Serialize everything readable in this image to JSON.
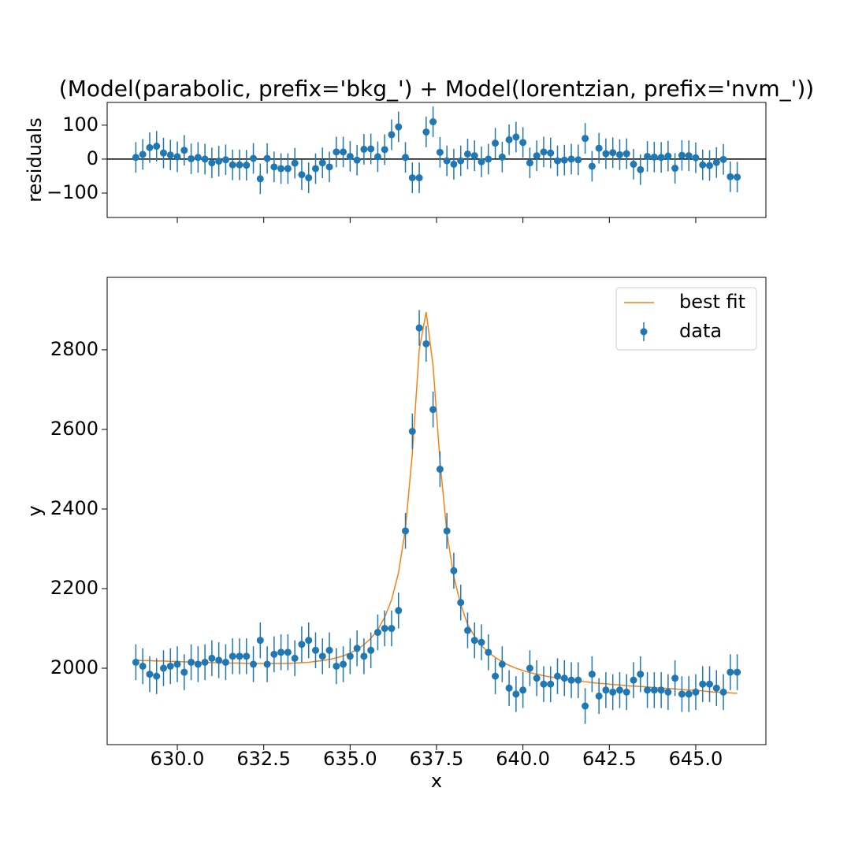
{
  "chart_data": [
    {
      "type": "errorbar",
      "title": "(Model(parabolic, prefix='bkg_') + Model(lorentzian, prefix='nvm_'))",
      "ylabel": "residuals",
      "x": [
        628.8,
        629.0,
        629.2,
        629.4,
        629.6,
        629.8,
        630.0,
        630.2,
        630.4,
        630.6,
        630.8,
        631.0,
        631.2,
        631.4,
        631.6,
        631.8,
        632.0,
        632.2,
        632.4,
        632.6,
        632.8,
        633.0,
        633.2,
        633.4,
        633.6,
        633.8,
        634.0,
        634.2,
        634.4,
        634.6,
        634.8,
        635.0,
        635.2,
        635.4,
        635.6,
        635.8,
        636.0,
        636.2,
        636.4,
        636.6,
        636.8,
        637.0,
        637.2,
        637.4,
        637.6,
        637.8,
        638.0,
        638.2,
        638.4,
        638.6,
        638.8,
        639.0,
        639.2,
        639.4,
        639.6,
        639.8,
        640.0,
        640.2,
        640.4,
        640.6,
        640.8,
        641.0,
        641.2,
        641.4,
        641.6,
        641.8,
        642.0,
        642.2,
        642.4,
        642.6,
        642.8,
        643.0,
        643.2,
        643.4,
        643.6,
        643.8,
        644.0,
        644.2,
        644.4,
        644.6,
        644.8,
        645.0,
        645.2,
        645.4,
        645.6,
        645.8,
        646.0,
        646.2
      ],
      "values": [
        5,
        14,
        34,
        38,
        18,
        12,
        7,
        26,
        1,
        5,
        0,
        -11,
        -6,
        -2,
        -17,
        -17,
        -18,
        2,
        -58,
        2,
        -23,
        -28,
        -28,
        -12,
        -46,
        -55,
        -28,
        -11,
        -23,
        21,
        21,
        8,
        -3,
        29,
        30,
        7,
        28,
        72,
        95,
        5,
        -55,
        -55,
        80,
        110,
        20,
        -5,
        -15,
        -5,
        15,
        10,
        -8,
        0,
        47,
        6,
        57,
        65,
        49,
        -11,
        10,
        21,
        18,
        -5,
        -3,
        0,
        -2,
        61,
        -21,
        32,
        16,
        19,
        13,
        16,
        -15,
        -31,
        8,
        6,
        5,
        9,
        -27,
        11,
        10,
        4,
        -17,
        -19,
        -10,
        -1,
        -52,
        -53
      ],
      "yerr": 45,
      "color": "#1f77b4",
      "hline": 0,
      "xticklabels": false,
      "xlim": [
        627.97,
        647.03
      ],
      "xticks": [
        {
          "value": 630,
          "label": "630.0"
        },
        {
          "value": 632.5,
          "label": "632.5"
        },
        {
          "value": 635,
          "label": "635.0"
        },
        {
          "value": 637.5,
          "label": "637.5"
        },
        {
          "value": 640,
          "label": "640.0"
        },
        {
          "value": 642.5,
          "label": "642.5"
        },
        {
          "value": 645,
          "label": "645.0"
        }
      ],
      "ylim": [
        -172,
        167
      ],
      "yticks": [
        {
          "value": -100,
          "label": "−100"
        },
        0,
        100
      ]
    },
    {
      "type": "errorbar",
      "xlabel": "x",
      "ylabel": "y",
      "legend": "upper right",
      "x": [
        628.8,
        629.0,
        629.2,
        629.4,
        629.6,
        629.8,
        630.0,
        630.2,
        630.4,
        630.6,
        630.8,
        631.0,
        631.2,
        631.4,
        631.6,
        631.8,
        632.0,
        632.2,
        632.4,
        632.6,
        632.8,
        633.0,
        633.2,
        633.4,
        633.6,
        633.8,
        634.0,
        634.2,
        634.4,
        634.6,
        634.8,
        635.0,
        635.2,
        635.4,
        635.6,
        635.8,
        636.0,
        636.2,
        636.4,
        636.6,
        636.8,
        637.0,
        637.2,
        637.4,
        637.6,
        637.8,
        638.0,
        638.2,
        638.4,
        638.6,
        638.8,
        639.0,
        639.2,
        639.4,
        639.6,
        639.8,
        640.0,
        640.2,
        640.4,
        640.6,
        640.8,
        641.0,
        641.2,
        641.4,
        641.6,
        641.8,
        642.0,
        642.2,
        642.4,
        642.6,
        642.8,
        643.0,
        643.2,
        643.4,
        643.6,
        643.8,
        644.0,
        644.2,
        644.4,
        644.6,
        644.8,
        645.0,
        645.2,
        645.4,
        645.6,
        645.8,
        646.0,
        646.2
      ],
      "series": [
        {
          "name": "best fit",
          "type": "line",
          "color": "#ff7f0e",
          "values": [
            2020,
            2019,
            2019,
            2018,
            2018,
            2017,
            2017,
            2016,
            2016,
            2015,
            2015,
            2014,
            2014,
            2013,
            2013,
            2013,
            2012,
            2012,
            2012,
            2012,
            2012,
            2012,
            2012,
            2013,
            2014,
            2015,
            2017,
            2019,
            2022,
            2026,
            2031,
            2038,
            2047,
            2059,
            2075,
            2097,
            2128,
            2172,
            2240,
            2350,
            2540,
            2800,
            2895,
            2760,
            2520,
            2340,
            2230,
            2160,
            2110,
            2080,
            2057,
            2040,
            2027,
            2016,
            2007,
            2000,
            1994,
            1989,
            1985,
            1981,
            1978,
            1975,
            1972,
            1970,
            1968,
            1966,
            1964,
            1962,
            1961,
            1959,
            1958,
            1956,
            1955,
            1954,
            1953,
            1951,
            1950,
            1949,
            1948,
            1946,
            1945,
            1944,
            1943,
            1941,
            1940,
            1939,
            1938,
            1937
          ]
        },
        {
          "name": "data",
          "type": "errorbar",
          "color": "#1f77b4",
          "yerr": 45,
          "values": [
            2015,
            2005,
            1985,
            1980,
            2000,
            2005,
            2010,
            1990,
            2015,
            2010,
            2015,
            2025,
            2020,
            2015,
            2030,
            2030,
            2030,
            2010,
            2070,
            2010,
            2035,
            2040,
            2040,
            2025,
            2060,
            2070,
            2045,
            2030,
            2045,
            2005,
            2010,
            2030,
            2050,
            2030,
            2045,
            2090,
            2100,
            2100,
            2145,
            2345,
            2595,
            2855,
            2815,
            2650,
            2500,
            2345,
            2245,
            2165,
            2095,
            2070,
            2065,
            2040,
            1980,
            2010,
            1950,
            1935,
            1945,
            2000,
            1975,
            1960,
            1960,
            1980,
            1975,
            1970,
            1970,
            1905,
            1985,
            1930,
            1945,
            1940,
            1945,
            1940,
            1970,
            1985,
            1945,
            1945,
            1945,
            1940,
            1975,
            1935,
            1935,
            1940,
            1960,
            1960,
            1950,
            1940,
            1990,
            1990
          ]
        }
      ],
      "xlim": [
        627.97,
        647.03
      ],
      "xticks": [
        {
          "value": 630,
          "label": "630.0"
        },
        {
          "value": 632.5,
          "label": "632.5"
        },
        {
          "value": 635,
          "label": "635.0"
        },
        {
          "value": 637.5,
          "label": "637.5"
        },
        {
          "value": 640,
          "label": "640.0"
        },
        {
          "value": 642.5,
          "label": "642.5"
        },
        {
          "value": 645,
          "label": "645.0"
        }
      ],
      "ylim": [
        1808,
        2982
      ],
      "yticks": [
        2000,
        2200,
        2400,
        2600,
        2800
      ]
    }
  ]
}
